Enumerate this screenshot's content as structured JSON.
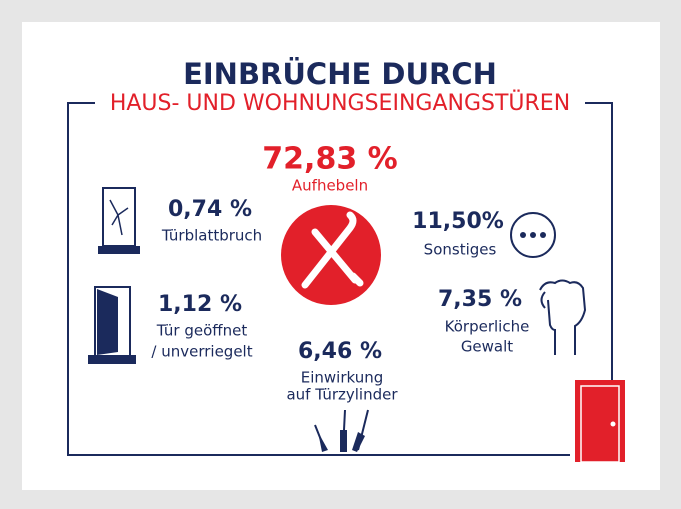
{
  "header": {
    "title": "EINBRÜCHE DURCH",
    "subtitle": "HAUS- UND WOHNUNGSEINGANGSTÜREN"
  },
  "items": [
    {
      "value": "72,83 %",
      "label_lines": [
        "Aufhebeln"
      ]
    },
    {
      "value": "0,74 %",
      "label_lines": [
        "Türblattbruch"
      ]
    },
    {
      "value": "11,50%",
      "label_lines": [
        "Sonstiges"
      ]
    },
    {
      "value": "1,12 %",
      "label_lines": [
        "Tür geöffnet",
        "/ unverriegelt"
      ]
    },
    {
      "value": "7,35 %",
      "label_lines": [
        "Körperliche",
        "Gewalt"
      ]
    },
    {
      "value": "6,46 %",
      "label_lines": [
        "Einwirkung",
        "auf Türzylinder"
      ]
    }
  ]
}
